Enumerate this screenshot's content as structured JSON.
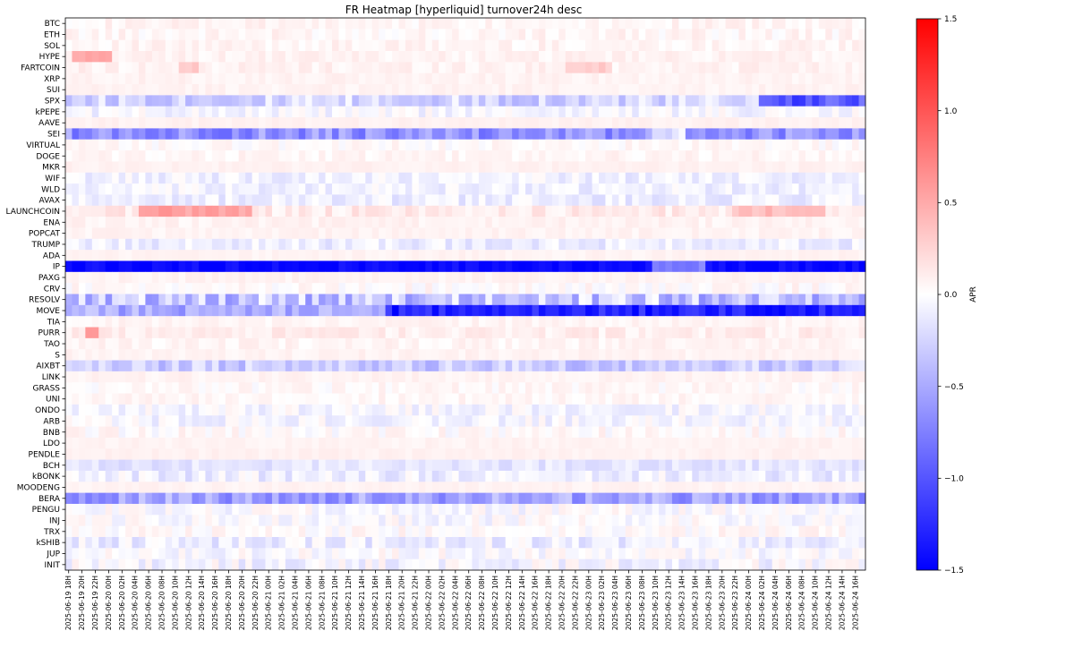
{
  "chart_data": {
    "type": "heatmap",
    "title": "FR Heatmap [hyperliquid] turnover24h desc",
    "rows": [
      "BTC",
      "ETH",
      "SOL",
      "HYPE",
      "FARTCOIN",
      "XRP",
      "SUI",
      "SPX",
      "kPEPE",
      "AAVE",
      "SEI",
      "VIRTUAL",
      "DOGE",
      "MKR",
      "WIF",
      "WLD",
      "AVAX",
      "LAUNCHCOIN",
      "ENA",
      "POPCAT",
      "TRUMP",
      "ADA",
      "IP",
      "PAXG",
      "CRV",
      "RESOLV",
      "MOVE",
      "TIA",
      "PURR",
      "TAO",
      "S",
      "AIXBT",
      "LINK",
      "GRASS",
      "UNI",
      "ONDO",
      "ARB",
      "BNB",
      "LDO",
      "PENDLE",
      "BCH",
      "kBONK",
      "MOODENG",
      "BERA",
      "PENGU",
      "INJ",
      "TRX",
      "kSHIB",
      "JUP",
      "INIT"
    ],
    "x_start": "2025-06-19 18H",
    "x_end": "2025-06-24 17H",
    "x_step_hours": 1,
    "x_tick_labels": [
      "2025-06-19 18H",
      "2025-06-19 20H",
      "2025-06-19 22H",
      "2025-06-20 00H",
      "2025-06-20 02H",
      "2025-06-20 04H",
      "2025-06-20 06H",
      "2025-06-20 08H",
      "2025-06-20 10H",
      "2025-06-20 12H",
      "2025-06-20 14H",
      "2025-06-20 16H",
      "2025-06-20 18H",
      "2025-06-20 20H",
      "2025-06-20 22H",
      "2025-06-21 00H",
      "2025-06-21 02H",
      "2025-06-21 04H",
      "2025-06-21 06H",
      "2025-06-21 08H",
      "2025-06-21 10H",
      "2025-06-21 12H",
      "2025-06-21 14H",
      "2025-06-21 16H",
      "2025-06-21 18H",
      "2025-06-21 20H",
      "2025-06-21 22H",
      "2025-06-22 00H",
      "2025-06-22 02H",
      "2025-06-22 04H",
      "2025-06-22 06H",
      "2025-06-22 08H",
      "2025-06-22 10H",
      "2025-06-22 12H",
      "2025-06-22 14H",
      "2025-06-22 16H",
      "2025-06-22 18H",
      "2025-06-22 20H",
      "2025-06-22 22H",
      "2025-06-23 00H",
      "2025-06-23 02H",
      "2025-06-23 04H",
      "2025-06-23 06H",
      "2025-06-23 08H",
      "2025-06-23 10H",
      "2025-06-23 12H",
      "2025-06-23 14H",
      "2025-06-23 16H",
      "2025-06-23 18H",
      "2025-06-23 20H",
      "2025-06-23 22H",
      "2025-06-24 00H",
      "2025-06-24 02H",
      "2025-06-24 04H",
      "2025-06-24 06H",
      "2025-06-24 08H",
      "2025-06-24 10H",
      "2025-06-24 12H",
      "2025-06-24 14H",
      "2025-06-24 16H"
    ],
    "colorbar": {
      "label": "APR",
      "vmin": -1.5,
      "vmax": 1.5,
      "ticks": [
        1.5,
        1.0,
        0.5,
        0.0,
        -0.5,
        -1.0,
        -1.5
      ],
      "tick_labels": [
        "1.5",
        "1.0",
        "0.5",
        "0.0",
        "−0.5",
        "−1.0",
        "−1.5"
      ],
      "cmap": "bwr",
      "low_color": "#0000ff",
      "mid_color": "#ffffff",
      "high_color": "#ff0000"
    },
    "row_profiles": {
      "BTC": {
        "baseline": 0.06,
        "noise": 0.07
      },
      "ETH": {
        "baseline": 0.05,
        "noise": 0.08
      },
      "SOL": {
        "baseline": 0.06,
        "noise": 0.07
      },
      "HYPE": {
        "baseline": 0.07,
        "noise": 0.06,
        "spikes": [
          {
            "from": 1,
            "to": 6,
            "value": 0.5
          }
        ]
      },
      "FARTCOIN": {
        "baseline": 0.08,
        "noise": 0.07,
        "spikes": [
          {
            "from": 17,
            "to": 19,
            "value": 0.3
          },
          {
            "from": 75,
            "to": 81,
            "value": 0.3
          }
        ]
      },
      "XRP": {
        "baseline": 0.07,
        "noise": 0.04
      },
      "SUI": {
        "baseline": 0.07,
        "noise": 0.04
      },
      "SPX": {
        "baseline": -0.25,
        "noise": 0.22,
        "spikes": [
          {
            "from": 104,
            "to": 119,
            "value": -1.0
          }
        ]
      },
      "kPEPE": {
        "baseline": -0.05,
        "noise": 0.12
      },
      "AAVE": {
        "baseline": 0.08,
        "noise": 0.03
      },
      "SEI": {
        "baseline": -0.65,
        "noise": 0.25,
        "spikes": [
          {
            "from": 88,
            "to": 92,
            "value": -0.2
          }
        ]
      },
      "VIRTUAL": {
        "baseline": 0.02,
        "noise": 0.08
      },
      "DOGE": {
        "baseline": 0.05,
        "noise": 0.06
      },
      "MKR": {
        "baseline": 0.08,
        "noise": 0.03
      },
      "WIF": {
        "baseline": -0.08,
        "noise": 0.12
      },
      "WLD": {
        "baseline": -0.08,
        "noise": 0.12
      },
      "AVAX": {
        "baseline": -0.1,
        "noise": 0.12
      },
      "LAUNCHCOIN": {
        "baseline": 0.12,
        "noise": 0.1,
        "spikes": [
          {
            "from": 11,
            "to": 27,
            "value": 0.55
          },
          {
            "from": 100,
            "to": 113,
            "value": 0.4
          }
        ]
      },
      "ENA": {
        "baseline": 0.07,
        "noise": 0.05
      },
      "POPCAT": {
        "baseline": 0.07,
        "noise": 0.04
      },
      "TRUMP": {
        "baseline": -0.1,
        "noise": 0.12
      },
      "ADA": {
        "baseline": 0.07,
        "noise": 0.03
      },
      "IP": {
        "baseline": -1.45,
        "noise": 0.1,
        "spikes": [
          {
            "from": 88,
            "to": 95,
            "value": -0.75
          }
        ]
      },
      "PAXG": {
        "baseline": 0.07,
        "noise": 0.04
      },
      "CRV": {
        "baseline": 0.02,
        "noise": 0.1
      },
      "RESOLV": {
        "baseline": -0.35,
        "noise": 0.35
      },
      "MOVE": {
        "baseline": -0.5,
        "noise": 0.2,
        "spikes": [
          {
            "from": 48,
            "to": 119,
            "value": -1.3
          }
        ]
      },
      "TIA": {
        "baseline": 0.06,
        "noise": 0.05
      },
      "PURR": {
        "baseline": 0.1,
        "noise": 0.08,
        "spikes": [
          {
            "from": 3,
            "to": 4,
            "value": 0.6
          }
        ]
      },
      "TAO": {
        "baseline": 0.06,
        "noise": 0.06
      },
      "S": {
        "baseline": 0.07,
        "noise": 0.04
      },
      "AIXBT": {
        "baseline": -0.3,
        "noise": 0.2
      },
      "LINK": {
        "baseline": 0.07,
        "noise": 0.04
      },
      "GRASS": {
        "baseline": 0.03,
        "noise": 0.08
      },
      "UNI": {
        "baseline": 0.05,
        "noise": 0.06
      },
      "ONDO": {
        "baseline": -0.05,
        "noise": 0.12
      },
      "ARB": {
        "baseline": -0.05,
        "noise": 0.12
      },
      "BNB": {
        "baseline": 0.02,
        "noise": 0.1
      },
      "LDO": {
        "baseline": 0.07,
        "noise": 0.03
      },
      "PENDLE": {
        "baseline": 0.08,
        "noise": 0.03
      },
      "BCH": {
        "baseline": -0.15,
        "noise": 0.1
      },
      "kBONK": {
        "baseline": -0.1,
        "noise": 0.15
      },
      "MOODENG": {
        "baseline": 0.07,
        "noise": 0.03
      },
      "BERA": {
        "baseline": -0.55,
        "noise": 0.25
      },
      "PENGU": {
        "baseline": -0.02,
        "noise": 0.12
      },
      "INJ": {
        "baseline": -0.02,
        "noise": 0.12
      },
      "TRX": {
        "baseline": 0.02,
        "noise": 0.1
      },
      "kSHIB": {
        "baseline": -0.1,
        "noise": 0.15
      },
      "JUP": {
        "baseline": -0.02,
        "noise": 0.12
      },
      "INIT": {
        "baseline": -0.05,
        "noise": 0.15
      }
    }
  }
}
